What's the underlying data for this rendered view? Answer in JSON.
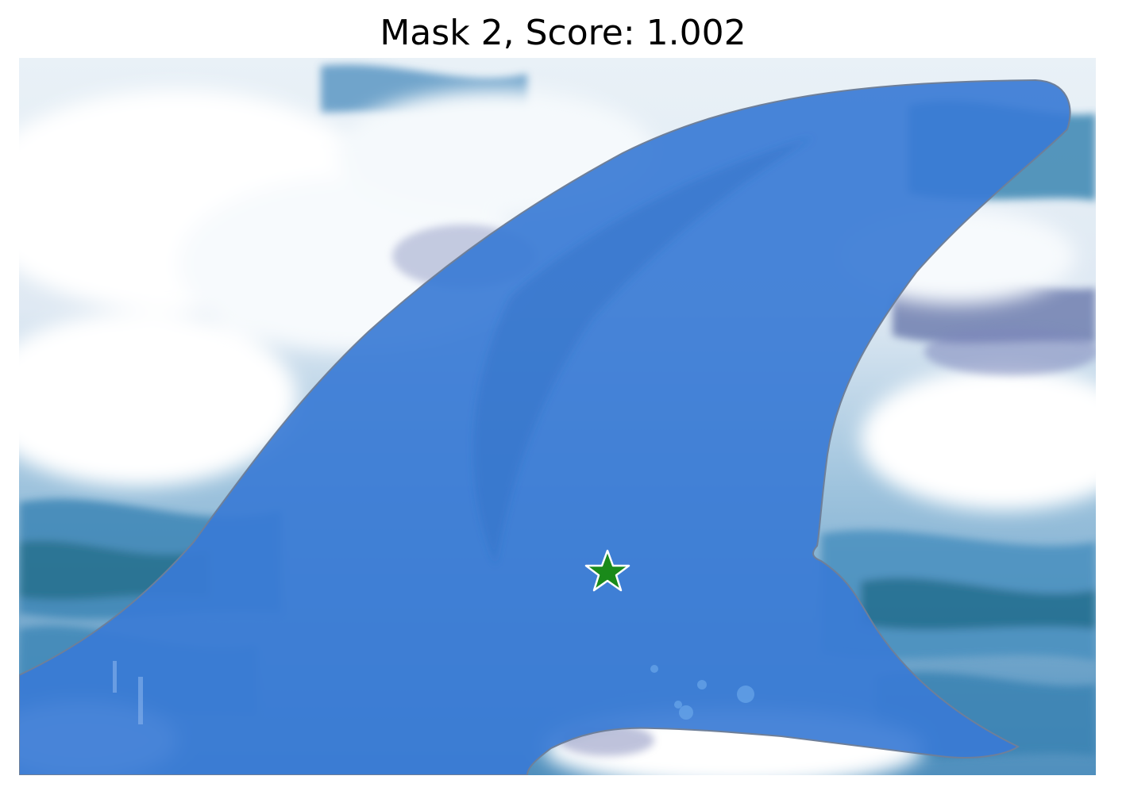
{
  "figure": {
    "title": "Mask 2, Score: 1.002"
  },
  "colors": {
    "mask_fill": "#3a7bd5",
    "mask_opacity": 0.9,
    "point_marker": "#1a8a1a",
    "point_marker_edge": "#ffffff",
    "water_dark": "#2a6f9a",
    "water_mid": "#5a9cc4",
    "foam": "#f4f8fb",
    "foam_shadow": "#9aa6c8"
  },
  "icons": {
    "prompt_point": "star-marker"
  }
}
